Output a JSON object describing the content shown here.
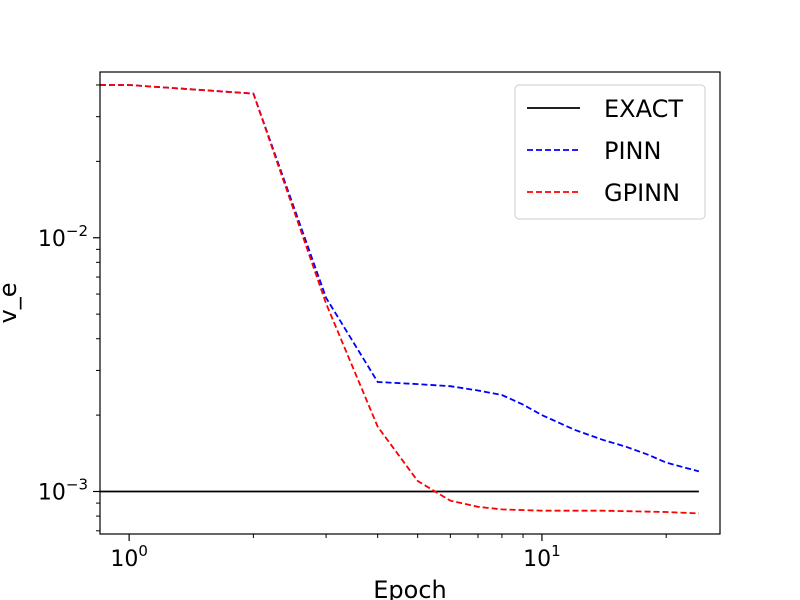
{
  "chart_data": {
    "type": "line",
    "xscale": "log",
    "yscale": "log",
    "xlabel": "Epoch",
    "ylabel": "v_e",
    "xlim": [
      0.85,
      27
    ],
    "ylim": [
      0.00068,
      0.045
    ],
    "xticks": [
      {
        "value": 1,
        "base": "10",
        "exp": "0"
      },
      {
        "value": 10,
        "base": "10",
        "exp": "1"
      }
    ],
    "yticks": [
      {
        "value": 0.001,
        "base": "10",
        "exp": "−3"
      },
      {
        "value": 0.01,
        "base": "10",
        "exp": "−2"
      }
    ],
    "grid": false,
    "legend_position": "top-right",
    "series": [
      {
        "name": "EXACT",
        "color": "#000000",
        "dash": "solid",
        "x": [
          0.85,
          24
        ],
        "y": [
          0.001,
          0.001
        ]
      },
      {
        "name": "PINN",
        "color": "#0000ff",
        "dash": "dashed",
        "x": [
          0.85,
          1,
          2,
          3,
          4,
          5,
          6,
          7,
          8,
          9,
          10,
          12,
          14,
          16,
          18,
          20,
          24
        ],
        "y": [
          0.04,
          0.04,
          0.037,
          0.0058,
          0.0027,
          0.00265,
          0.0026,
          0.0025,
          0.0024,
          0.0022,
          0.002,
          0.00175,
          0.0016,
          0.0015,
          0.0014,
          0.0013,
          0.0012
        ]
      },
      {
        "name": "GPINN",
        "color": "#ff0000",
        "dash": "dashed",
        "x": [
          0.85,
          1,
          2,
          3,
          4,
          5,
          6,
          7,
          8,
          10,
          14,
          20,
          24
        ],
        "y": [
          0.04,
          0.04,
          0.037,
          0.0055,
          0.0018,
          0.0011,
          0.00092,
          0.00087,
          0.00085,
          0.00084,
          0.00084,
          0.00083,
          0.00082
        ]
      }
    ]
  }
}
